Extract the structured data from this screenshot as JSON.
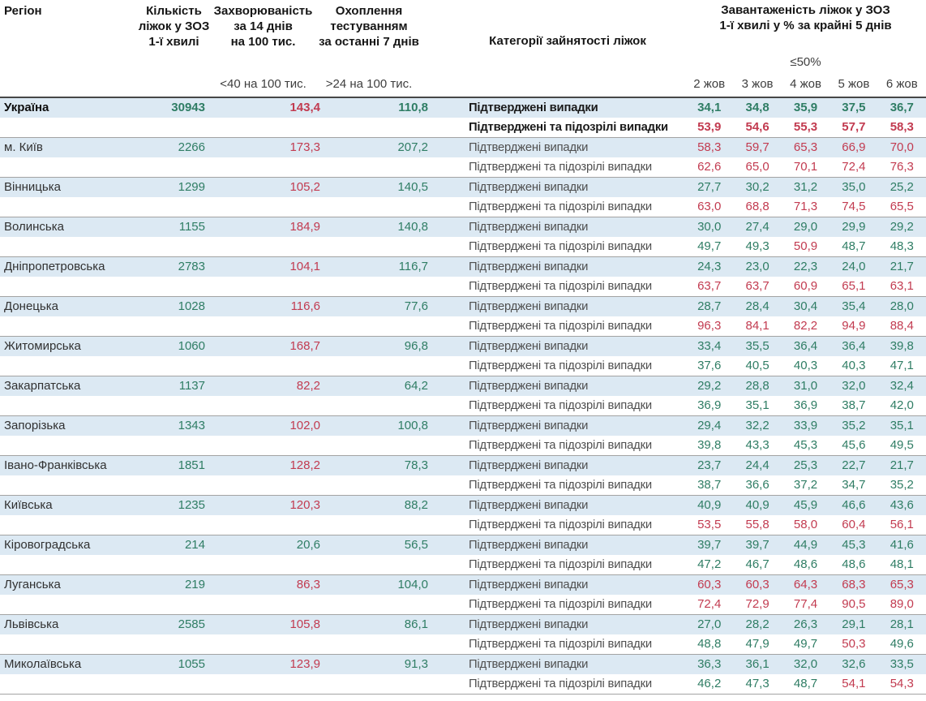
{
  "header": {
    "region": "Регіон",
    "beds": "Кількість\nліжок у ЗОЗ\n1-ї хвилі",
    "incidence": "Захворюваність\nза 14 днів\nна 100 тис.",
    "testing": "Охоплення\nтестуванням\nза останні 7 днів",
    "categories": "Категорії зайнятості ліжок",
    "occupancy": "Завантаженість ліжок у ЗОЗ\n1-ї хвилі у % за крайні 5 днів",
    "incidence_threshold_label": "<40 на 100 тис.",
    "testing_threshold_label": ">24 на 100 тис.",
    "occupancy_threshold_label": "≤50%"
  },
  "colors": {
    "green": "#2f7d64",
    "red": "#c23b50",
    "band": "#dce9f3"
  },
  "table": {
    "dates": [
      "2 жов",
      "3 жов",
      "4 жов",
      "5 жов",
      "6 жов"
    ],
    "row_labels": {
      "confirmed": "Підтверджені випадки",
      "confirmed_suspected": "Підтверджені та підозрілі випадки"
    },
    "thresholds": {
      "incidence_red_from": 40,
      "testing_green_from": 24,
      "occupancy_red_above": 50
    },
    "regions": [
      {
        "name": "Україна",
        "bold": true,
        "beds": "30943",
        "incidence": "143,4",
        "testing": "110,8",
        "confirmed": [
          "34,1",
          "34,8",
          "35,9",
          "37,5",
          "36,7"
        ],
        "confirmed_suspected": [
          "53,9",
          "54,6",
          "55,3",
          "57,7",
          "58,3"
        ]
      },
      {
        "name": "м. Київ",
        "bold": false,
        "beds": "2266",
        "incidence": "173,3",
        "testing": "207,2",
        "confirmed": [
          "58,3",
          "59,7",
          "65,3",
          "66,9",
          "70,0"
        ],
        "confirmed_suspected": [
          "62,6",
          "65,0",
          "70,1",
          "72,4",
          "76,3"
        ]
      },
      {
        "name": "Вінницька",
        "bold": false,
        "beds": "1299",
        "incidence": "105,2",
        "testing": "140,5",
        "confirmed": [
          "27,7",
          "30,2",
          "31,2",
          "35,0",
          "25,2"
        ],
        "confirmed_suspected": [
          "63,0",
          "68,8",
          "71,3",
          "74,5",
          "65,5"
        ]
      },
      {
        "name": "Волинська",
        "bold": false,
        "beds": "1155",
        "incidence": "184,9",
        "testing": "140,8",
        "confirmed": [
          "30,0",
          "27,4",
          "29,0",
          "29,9",
          "29,2"
        ],
        "confirmed_suspected": [
          "49,7",
          "49,3",
          "50,9",
          "48,7",
          "48,3"
        ]
      },
      {
        "name": "Дніпропетровська",
        "bold": false,
        "beds": "2783",
        "incidence": "104,1",
        "testing": "116,7",
        "confirmed": [
          "24,3",
          "23,0",
          "22,3",
          "24,0",
          "21,7"
        ],
        "confirmed_suspected": [
          "63,7",
          "63,7",
          "60,9",
          "65,1",
          "63,1"
        ]
      },
      {
        "name": "Донецька",
        "bold": false,
        "beds": "1028",
        "incidence": "116,6",
        "testing": "77,6",
        "confirmed": [
          "28,7",
          "28,4",
          "30,4",
          "35,4",
          "28,0"
        ],
        "confirmed_suspected": [
          "96,3",
          "84,1",
          "82,2",
          "94,9",
          "88,4"
        ]
      },
      {
        "name": "Житомирська",
        "bold": false,
        "beds": "1060",
        "incidence": "168,7",
        "testing": "96,8",
        "confirmed": [
          "33,4",
          "35,5",
          "36,4",
          "36,4",
          "39,8"
        ],
        "confirmed_suspected": [
          "37,6",
          "40,5",
          "40,3",
          "40,3",
          "47,1"
        ]
      },
      {
        "name": "Закарпатська",
        "bold": false,
        "beds": "1137",
        "incidence": "82,2",
        "testing": "64,2",
        "confirmed": [
          "29,2",
          "28,8",
          "31,0",
          "32,0",
          "32,4"
        ],
        "confirmed_suspected": [
          "36,9",
          "35,1",
          "36,9",
          "38,7",
          "42,0"
        ]
      },
      {
        "name": "Запорізька",
        "bold": false,
        "beds": "1343",
        "incidence": "102,0",
        "testing": "100,8",
        "confirmed": [
          "29,4",
          "32,2",
          "33,9",
          "35,2",
          "35,1"
        ],
        "confirmed_suspected": [
          "39,8",
          "43,3",
          "45,3",
          "45,6",
          "49,5"
        ]
      },
      {
        "name": "Івано-Франківська",
        "bold": false,
        "beds": "1851",
        "incidence": "128,2",
        "testing": "78,3",
        "confirmed": [
          "23,7",
          "24,4",
          "25,3",
          "22,7",
          "21,7"
        ],
        "confirmed_suspected": [
          "38,7",
          "36,6",
          "37,2",
          "34,7",
          "35,2"
        ]
      },
      {
        "name": "Київська",
        "bold": false,
        "beds": "1235",
        "incidence": "120,3",
        "testing": "88,2",
        "confirmed": [
          "40,9",
          "40,9",
          "45,9",
          "46,6",
          "43,6"
        ],
        "confirmed_suspected": [
          "53,5",
          "55,8",
          "58,0",
          "60,4",
          "56,1"
        ]
      },
      {
        "name": "Кіровоградська",
        "bold": false,
        "beds": "214",
        "incidence": "20,6",
        "testing": "56,5",
        "confirmed": [
          "39,7",
          "39,7",
          "44,9",
          "45,3",
          "41,6"
        ],
        "confirmed_suspected": [
          "47,2",
          "46,7",
          "48,6",
          "48,6",
          "48,1"
        ]
      },
      {
        "name": "Луганська",
        "bold": false,
        "beds": "219",
        "incidence": "86,3",
        "testing": "104,0",
        "confirmed": [
          "60,3",
          "60,3",
          "64,3",
          "68,3",
          "65,3"
        ],
        "confirmed_suspected": [
          "72,4",
          "72,9",
          "77,4",
          "90,5",
          "89,0"
        ]
      },
      {
        "name": "Львівська",
        "bold": false,
        "beds": "2585",
        "incidence": "105,8",
        "testing": "86,1",
        "confirmed": [
          "27,0",
          "28,2",
          "26,3",
          "29,1",
          "28,1"
        ],
        "confirmed_suspected": [
          "48,8",
          "47,9",
          "49,7",
          "50,3",
          "49,6"
        ]
      },
      {
        "name": "Миколаївська",
        "bold": false,
        "beds": "1055",
        "incidence": "123,9",
        "testing": "91,3",
        "confirmed": [
          "36,3",
          "36,1",
          "32,0",
          "32,6",
          "33,5"
        ],
        "confirmed_suspected": [
          "46,2",
          "47,3",
          "48,7",
          "54,1",
          "54,3"
        ]
      }
    ]
  }
}
